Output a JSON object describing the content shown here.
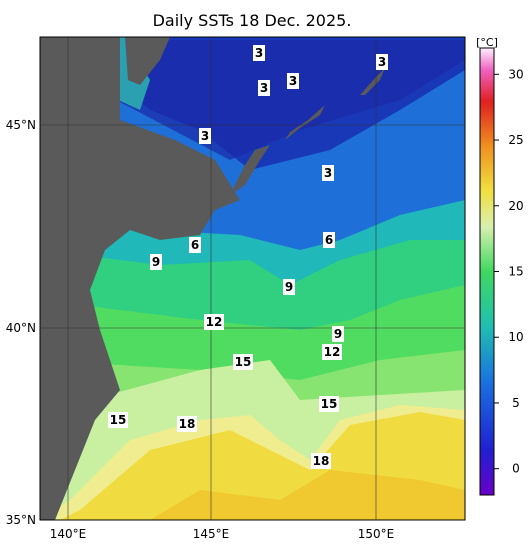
{
  "title": "Daily SSTs 18 Dec. 2025.",
  "map": {
    "lat_labels": [
      "45°N",
      "40°N",
      "35°N"
    ],
    "lon_labels": [
      "140°E",
      "145°E",
      "150°E"
    ],
    "contour_labels": [
      "3",
      "3",
      "3",
      "3",
      "3",
      "3",
      "6",
      "6",
      "9",
      "9",
      "9",
      "12",
      "12",
      "15",
      "15",
      "15",
      "18",
      "18"
    ]
  },
  "colorbar": {
    "unit": "[°C]",
    "lim": [
      -2,
      32
    ],
    "ticks": [
      0,
      5,
      10,
      15,
      20,
      25,
      30
    ]
  }
}
